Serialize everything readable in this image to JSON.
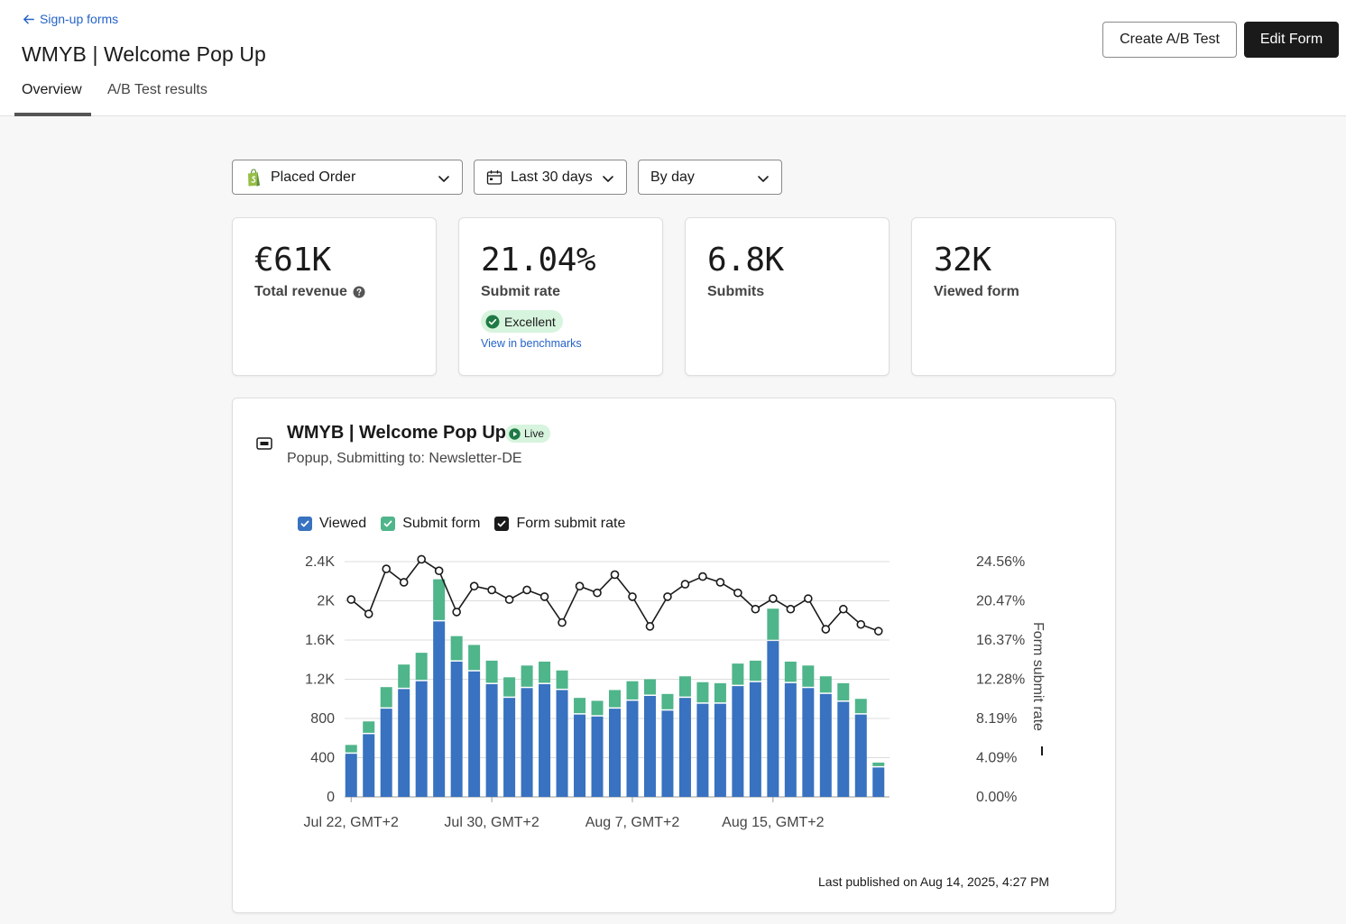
{
  "header": {
    "back_label": "Sign-up forms",
    "title": "WMYB | Welcome Pop Up",
    "tabs": [
      {
        "label": "Overview",
        "active": true
      },
      {
        "label": "A/B Test results",
        "active": false
      }
    ],
    "create_ab_label": "Create A/B Test",
    "edit_form_label": "Edit Form"
  },
  "filters": {
    "metric": "Placed Order",
    "date_range": "Last 30 days",
    "granularity": "By day"
  },
  "stats": [
    {
      "value": "€61K",
      "label": "Total revenue"
    },
    {
      "value": "21.04%",
      "label": "Submit rate",
      "badge": "Excellent",
      "link": "View in benchmarks"
    },
    {
      "value": "6.8K",
      "label": "Submits"
    },
    {
      "value": "32K",
      "label": "Viewed form"
    }
  ],
  "form": {
    "title": "WMYB | Welcome Pop Up",
    "status": "Live",
    "subtitle": "Popup, Submitting to: Newsletter-DE",
    "published": "Last published on Aug 14, 2025, 4:27 PM"
  },
  "legend": [
    {
      "label": "Viewed",
      "color": "#3872c0"
    },
    {
      "label": "Submit form",
      "color": "#4fb58a"
    },
    {
      "label": "Form submit rate",
      "color": "#1a1a1a"
    }
  ],
  "colors": {
    "accent_link": "#2563c9",
    "viewed": "#3872c0",
    "submitted": "#4fb58a",
    "rate_line": "#1a1a1a",
    "badge_bg": "#d7f4de"
  },
  "chart_data": {
    "type": "bar",
    "stacked": true,
    "x_tick_labels": [
      "Jul 22, GMT+2",
      "Jul 30, GMT+2",
      "Aug 7, GMT+2",
      "Aug 15, GMT+2"
    ],
    "x_tick_indices": [
      0,
      8,
      16,
      24
    ],
    "y_left_ticks": [
      "0",
      "400",
      "800",
      "1.2K",
      "1.6K",
      "2K",
      "2.4K"
    ],
    "y_left_lim": [
      0,
      2400
    ],
    "y_right_ticks": [
      "0.00%",
      "4.09%",
      "8.19%",
      "12.28%",
      "16.37%",
      "20.47%",
      "24.56%"
    ],
    "y_right_lim": [
      0,
      24.56
    ],
    "y_right_label": "Form submit rate",
    "grid": true,
    "series": [
      {
        "name": "Viewed",
        "kind": "bar",
        "values": [
          440,
          640,
          900,
          1100,
          1180,
          1790,
          1380,
          1280,
          1150,
          1010,
          1110,
          1150,
          1090,
          840,
          820,
          900,
          980,
          1030,
          880,
          1010,
          950,
          950,
          1130,
          1170,
          1590,
          1160,
          1110,
          1050,
          970,
          840,
          300
        ]
      },
      {
        "name": "Submit form",
        "kind": "bar",
        "values": [
          90,
          130,
          220,
          250,
          290,
          430,
          260,
          270,
          240,
          210,
          230,
          230,
          200,
          170,
          160,
          190,
          200,
          170,
          170,
          220,
          220,
          210,
          230,
          220,
          330,
          220,
          230,
          180,
          190,
          160,
          50
        ]
      },
      {
        "name": "Form submit rate",
        "kind": "line",
        "values": [
          20.6,
          19.1,
          23.8,
          22.4,
          24.8,
          23.6,
          19.3,
          22.0,
          21.6,
          20.6,
          21.6,
          20.9,
          18.2,
          22.0,
          21.3,
          23.2,
          20.9,
          17.8,
          20.9,
          22.2,
          23.0,
          22.4,
          21.3,
          19.6,
          20.7,
          19.6,
          20.7,
          17.5,
          19.6,
          18.0,
          17.3
        ]
      }
    ]
  }
}
